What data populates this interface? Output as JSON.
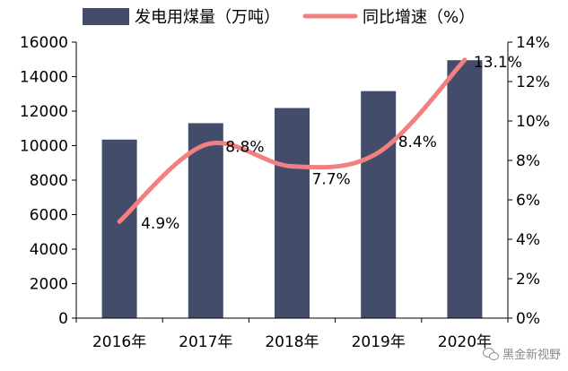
{
  "chart_data": {
    "type": "bar",
    "categories": [
      "2016年",
      "2017年",
      "2018年",
      "2019年",
      "2020年"
    ],
    "series": [
      {
        "name": "发电用煤量（万吨）",
        "type": "bar",
        "axis": "left",
        "values": [
          10350,
          11300,
          12180,
          13160,
          14950
        ],
        "color": "#434c6a"
      },
      {
        "name": "同比增速（%）",
        "type": "line",
        "axis": "right",
        "values": [
          4.9,
          8.8,
          7.7,
          8.4,
          13.1
        ],
        "data_labels": [
          "4.9%",
          "8.8%",
          "7.7%",
          "8.4%",
          "13.1%"
        ],
        "color": "#f38080"
      }
    ],
    "y_left": {
      "lim": [
        0,
        16000
      ],
      "ticks": [
        "0",
        "2000",
        "4000",
        "6000",
        "8000",
        "10000",
        "12000",
        "14000",
        "16000"
      ]
    },
    "y_right": {
      "lim": [
        0,
        14
      ],
      "ticks": [
        "0%",
        "2%",
        "4%",
        "6%",
        "8%",
        "10%",
        "12%",
        "14%"
      ]
    },
    "legend_position": "top",
    "grid": false
  },
  "watermark": {
    "text": "黑金新视野",
    "icon": "wechat-icon"
  }
}
